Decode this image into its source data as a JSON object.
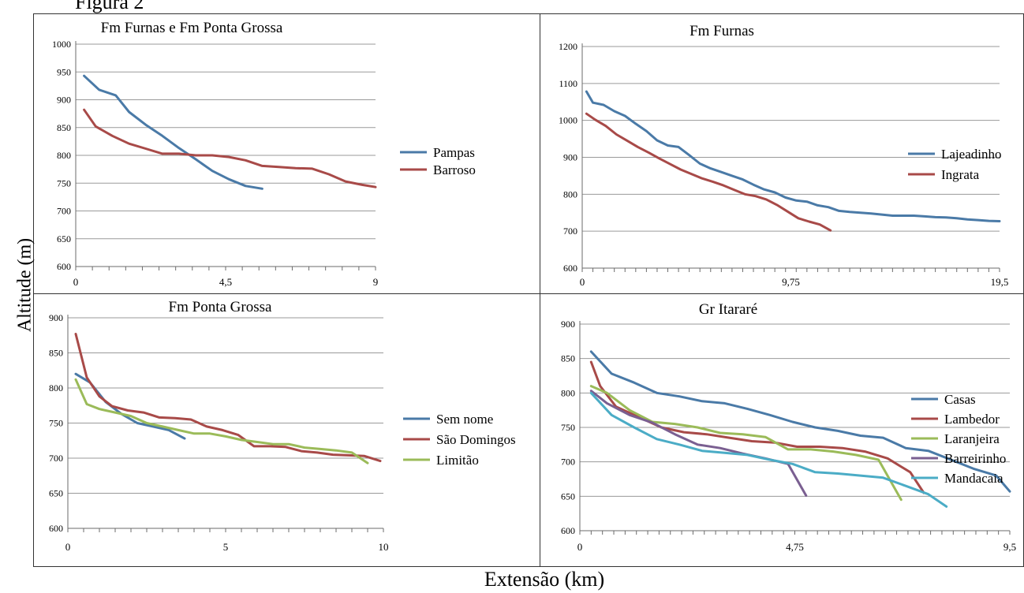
{
  "figure_label": "Figura 2",
  "ylabel": "Altitude (m)",
  "xlabel": "Extensão (km)",
  "chart_data": [
    {
      "type": "line",
      "title": "Fm Furnas e Fm Ponta Grossa",
      "ylim": [
        600,
        1000
      ],
      "yticks": [
        "600",
        "650",
        "700",
        "750",
        "800",
        "850",
        "900",
        "950",
        "1000"
      ],
      "xlim": [
        0,
        9
      ],
      "xticks": [
        {
          "v": 4.5,
          "label": "4,5"
        },
        {
          "v": 9,
          "label": "9"
        }
      ],
      "minor_ticks": 18,
      "grid": "horizontal",
      "legend": "right",
      "series": [
        {
          "name": "Pampas",
          "color": "#4a7aa7",
          "x": [
            0.25,
            0.7,
            1.2,
            1.6,
            2.1,
            2.6,
            3.1,
            3.6,
            4.1,
            4.6,
            5.1,
            5.6
          ],
          "y": [
            943,
            918,
            908,
            878,
            855,
            835,
            813,
            793,
            772,
            757,
            745,
            740
          ]
        },
        {
          "name": "Barroso",
          "color": "#a84a48",
          "x": [
            0.25,
            0.6,
            1.1,
            1.6,
            2.1,
            2.6,
            3.1,
            3.6,
            4.1,
            4.6,
            5.1,
            5.6,
            6.1,
            6.6,
            7.1,
            7.6,
            8.1,
            8.6,
            9.0
          ],
          "y": [
            882,
            852,
            835,
            821,
            812,
            803,
            803,
            800,
            800,
            797,
            791,
            781,
            779,
            777,
            776,
            766,
            753,
            747,
            743
          ]
        }
      ]
    },
    {
      "type": "line",
      "title": "Fm Furnas",
      "ylim": [
        600,
        1200
      ],
      "yticks": [
        "600",
        "700",
        "800",
        "900",
        "1000",
        "1100",
        "1200"
      ],
      "xlim": [
        0,
        19.5
      ],
      "xticks": [
        {
          "v": 9.75,
          "label": "9,75"
        },
        {
          "v": 19.5,
          "label": "19,5"
        }
      ],
      "minor_ticks": 39,
      "grid": "horizontal",
      "legend": "right",
      "series": [
        {
          "name": "Lajeadinho",
          "color": "#4a7aa7",
          "x": [
            0.2,
            0.5,
            1.0,
            1.5,
            2.0,
            2.5,
            3.0,
            3.5,
            4.0,
            4.5,
            5.0,
            5.5,
            6.0,
            6.5,
            7.0,
            7.5,
            8.0,
            8.5,
            9.0,
            9.5,
            10.0,
            10.5,
            11.0,
            11.5,
            12.0,
            12.5,
            13.0,
            13.5,
            14.0,
            14.5,
            15.0,
            15.5,
            16.0,
            16.5,
            17.0,
            17.5,
            18.0,
            18.5,
            19.0,
            19.5
          ],
          "y": [
            1078,
            1048,
            1042,
            1025,
            1012,
            991,
            971,
            946,
            932,
            928,
            906,
            883,
            870,
            860,
            850,
            840,
            826,
            813,
            805,
            791,
            783,
            780,
            770,
            765,
            755,
            752,
            750,
            748,
            745,
            742,
            742,
            742,
            740,
            738,
            737,
            735,
            732,
            730,
            728,
            727
          ]
        },
        {
          "name": "Ingrata",
          "color": "#a84a48",
          "x": [
            0.2,
            0.6,
            1.1,
            1.6,
            2.1,
            2.6,
            3.1,
            3.6,
            4.1,
            4.6,
            5.1,
            5.6,
            6.1,
            6.6,
            7.1,
            7.6,
            8.1,
            8.6,
            9.1,
            9.6,
            10.1,
            10.6,
            11.1,
            11.6
          ],
          "y": [
            1018,
            1002,
            985,
            962,
            945,
            928,
            913,
            897,
            882,
            867,
            855,
            843,
            834,
            824,
            812,
            800,
            795,
            786,
            771,
            753,
            735,
            726,
            718,
            702
          ]
        }
      ]
    },
    {
      "type": "line",
      "title": "Fm Ponta Grossa",
      "ylim": [
        600,
        900
      ],
      "yticks": [
        "600",
        "650",
        "700",
        "750",
        "800",
        "850",
        "900"
      ],
      "xlim": [
        0,
        10
      ],
      "xticks": [
        {
          "v": 5,
          "label": "5"
        },
        {
          "v": 10,
          "label": "10"
        }
      ],
      "minor_ticks": 20,
      "grid": "horizontal",
      "legend": "right",
      "series": [
        {
          "name": "Sem nome",
          "color": "#4a7aa7",
          "x": [
            0.25,
            0.7,
            1.2,
            1.7,
            2.2,
            2.7,
            3.2,
            3.7
          ],
          "y": [
            820,
            808,
            780,
            763,
            750,
            745,
            740,
            728
          ]
        },
        {
          "name": "São Domingos",
          "color": "#a84a48",
          "x": [
            0.25,
            0.6,
            1.0,
            1.4,
            1.9,
            2.4,
            2.9,
            3.4,
            3.9,
            4.4,
            4.9,
            5.4,
            5.9,
            6.4,
            6.9,
            7.4,
            7.9,
            8.4,
            8.9,
            9.4,
            9.9
          ],
          "y": [
            877,
            815,
            788,
            774,
            768,
            765,
            758,
            757,
            755,
            745,
            740,
            733,
            717,
            717,
            716,
            710,
            708,
            705,
            704,
            703,
            696
          ]
        },
        {
          "name": "Limitão",
          "color": "#9bbb59",
          "x": [
            0.25,
            0.6,
            1.0,
            1.5,
            2.0,
            2.5,
            3.0,
            3.5,
            4.0,
            4.5,
            5.0,
            5.5,
            6.0,
            6.5,
            7.0,
            7.5,
            8.0,
            8.5,
            9.0,
            9.5
          ],
          "y": [
            812,
            777,
            770,
            765,
            760,
            750,
            745,
            740,
            735,
            735,
            731,
            726,
            723,
            720,
            720,
            715,
            713,
            711,
            708,
            693
          ]
        }
      ]
    },
    {
      "type": "line",
      "title": "Gr Itararé",
      "ylim": [
        600,
        900
      ],
      "yticks": [
        "600",
        "650",
        "700",
        "750",
        "800",
        "850",
        "900"
      ],
      "xlim": [
        0,
        9.5
      ],
      "xticks": [
        {
          "v": 4.75,
          "label": "4,75"
        },
        {
          "v": 9.5,
          "label": "9,5"
        }
      ],
      "minor_ticks": 38,
      "grid": "horizontal",
      "legend": "right",
      "series": [
        {
          "name": "Casas",
          "color": "#4a7aa7",
          "x": [
            0.25,
            0.7,
            1.2,
            1.7,
            2.2,
            2.7,
            3.2,
            3.7,
            4.2,
            4.7,
            5.2,
            5.7,
            6.2,
            6.7,
            7.2,
            7.7,
            8.2,
            8.7,
            9.2,
            9.5
          ],
          "y": [
            860,
            828,
            815,
            800,
            795,
            788,
            785,
            777,
            768,
            758,
            750,
            745,
            738,
            735,
            720,
            716,
            703,
            690,
            680,
            657
          ]
        },
        {
          "name": "Lambedor",
          "color": "#a84a48",
          "x": [
            0.25,
            0.45,
            0.8,
            1.3,
            1.8,
            2.3,
            2.8,
            3.3,
            3.8,
            4.3,
            4.8,
            5.3,
            5.8,
            6.3,
            6.8,
            7.3,
            7.6
          ],
          "y": [
            845,
            810,
            780,
            765,
            750,
            743,
            740,
            735,
            730,
            728,
            722,
            722,
            720,
            715,
            705,
            685,
            655
          ]
        },
        {
          "name": "Laranjeira",
          "color": "#9bbb59",
          "x": [
            0.25,
            0.6,
            1.1,
            1.6,
            2.1,
            2.6,
            3.1,
            3.6,
            4.1,
            4.6,
            5.1,
            5.6,
            6.1,
            6.6,
            7.1
          ],
          "y": [
            810,
            800,
            775,
            758,
            755,
            750,
            742,
            740,
            736,
            718,
            718,
            715,
            710,
            703,
            645
          ]
        },
        {
          "name": "Barreirinho",
          "color": "#7a5f91",
          "x": [
            0.25,
            0.6,
            1.1,
            1.6,
            2.1,
            2.6,
            3.1,
            3.6,
            4.1,
            4.6,
            5.0
          ],
          "y": [
            803,
            785,
            768,
            757,
            740,
            725,
            720,
            712,
            705,
            697,
            651
          ]
        },
        {
          "name": "Mandacaia",
          "color": "#4bacc6",
          "x": [
            0.25,
            0.7,
            1.2,
            1.7,
            2.2,
            2.7,
            3.2,
            3.7,
            4.2,
            4.7,
            5.2,
            5.7,
            6.2,
            6.7,
            7.2,
            7.7,
            8.1
          ],
          "y": [
            800,
            768,
            750,
            733,
            725,
            716,
            713,
            710,
            703,
            697,
            685,
            683,
            680,
            677,
            665,
            653,
            635
          ]
        }
      ]
    }
  ]
}
